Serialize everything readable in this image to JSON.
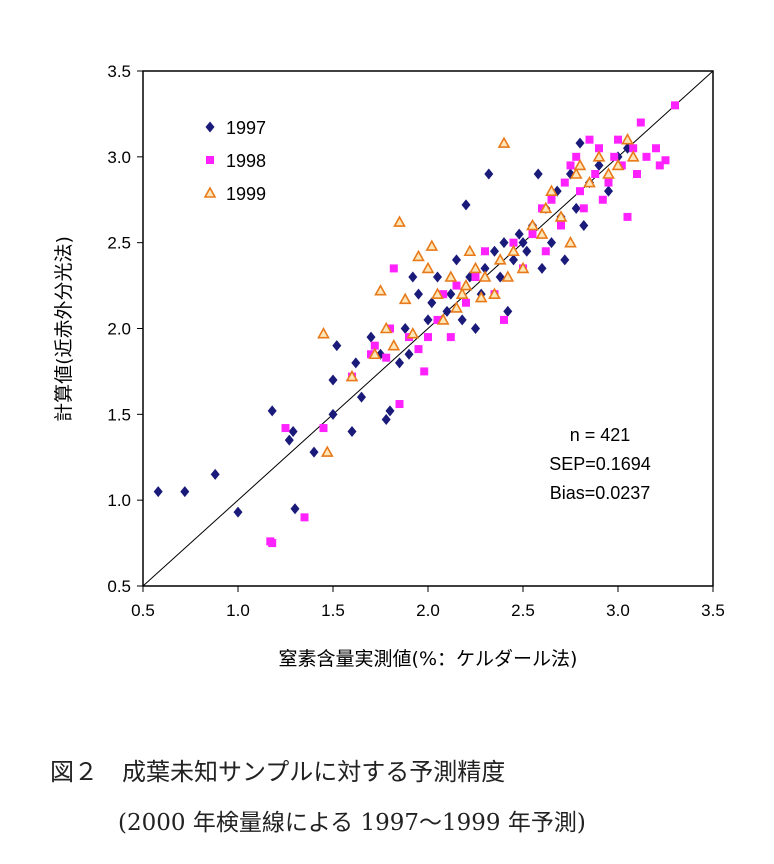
{
  "chart_data": {
    "type": "scatter",
    "xlabel": "窒素含量実測値(%：ケルダール法)",
    "ylabel": "計算値(近赤外分光法)",
    "xlim": [
      0.5,
      3.5
    ],
    "ylim": [
      0.5,
      3.5
    ],
    "x_ticks": [
      "0.5",
      "1.0",
      "1.5",
      "2.0",
      "2.5",
      "3.0",
      "3.5"
    ],
    "y_ticks": [
      "0.5",
      "1.0",
      "1.5",
      "2.0",
      "2.5",
      "3.0",
      "3.5"
    ],
    "grid": false,
    "legend_position": "top-left",
    "reference_line": "y = x",
    "stats": [
      "n = 421",
      "SEP=0.1694",
      "Bias=0.0237"
    ],
    "series": [
      {
        "name": "1997",
        "marker": "diamond",
        "color": "#1a1a7a",
        "points": [
          [
            0.58,
            1.05
          ],
          [
            0.72,
            1.05
          ],
          [
            0.88,
            1.15
          ],
          [
            1.0,
            0.93
          ],
          [
            1.18,
            1.52
          ],
          [
            1.27,
            1.35
          ],
          [
            1.29,
            1.4
          ],
          [
            1.3,
            0.95
          ],
          [
            1.4,
            1.28
          ],
          [
            1.5,
            1.5
          ],
          [
            1.5,
            1.7
          ],
          [
            1.52,
            1.9
          ],
          [
            1.6,
            1.4
          ],
          [
            1.62,
            1.8
          ],
          [
            1.65,
            1.6
          ],
          [
            1.7,
            1.95
          ],
          [
            1.75,
            1.85
          ],
          [
            1.78,
            1.47
          ],
          [
            1.8,
            1.52
          ],
          [
            1.85,
            1.8
          ],
          [
            1.88,
            2.0
          ],
          [
            1.9,
            1.85
          ],
          [
            1.92,
            2.3
          ],
          [
            1.95,
            2.2
          ],
          [
            2.0,
            2.05
          ],
          [
            2.02,
            2.15
          ],
          [
            2.05,
            2.3
          ],
          [
            2.1,
            2.1
          ],
          [
            2.12,
            2.2
          ],
          [
            2.15,
            2.4
          ],
          [
            2.18,
            2.05
          ],
          [
            2.2,
            2.72
          ],
          [
            2.22,
            2.3
          ],
          [
            2.25,
            2.0
          ],
          [
            2.28,
            2.2
          ],
          [
            2.3,
            2.35
          ],
          [
            2.32,
            2.9
          ],
          [
            2.35,
            2.45
          ],
          [
            2.38,
            2.3
          ],
          [
            2.4,
            2.5
          ],
          [
            2.42,
            2.1
          ],
          [
            2.45,
            2.4
          ],
          [
            2.48,
            2.55
          ],
          [
            2.5,
            2.5
          ],
          [
            2.52,
            2.45
          ],
          [
            2.55,
            2.6
          ],
          [
            2.58,
            2.9
          ],
          [
            2.6,
            2.35
          ],
          [
            2.62,
            2.7
          ],
          [
            2.65,
            2.5
          ],
          [
            2.68,
            2.8
          ],
          [
            2.7,
            2.65
          ],
          [
            2.72,
            2.4
          ],
          [
            2.75,
            2.9
          ],
          [
            2.78,
            2.7
          ],
          [
            2.8,
            3.08
          ],
          [
            2.82,
            2.6
          ],
          [
            2.85,
            2.85
          ],
          [
            2.9,
            2.95
          ],
          [
            2.95,
            2.8
          ],
          [
            3.0,
            3.0
          ],
          [
            3.05,
            3.05
          ]
        ]
      },
      {
        "name": "1998",
        "marker": "square",
        "color": "#ff22ff",
        "points": [
          [
            1.17,
            0.76
          ],
          [
            1.18,
            0.75
          ],
          [
            1.25,
            1.42
          ],
          [
            1.35,
            0.9
          ],
          [
            1.45,
            1.42
          ],
          [
            1.6,
            1.72
          ],
          [
            1.7,
            1.85
          ],
          [
            1.72,
            1.9
          ],
          [
            1.78,
            1.83
          ],
          [
            1.8,
            2.0
          ],
          [
            1.82,
            2.35
          ],
          [
            1.85,
            1.56
          ],
          [
            1.9,
            1.95
          ],
          [
            1.95,
            1.88
          ],
          [
            1.98,
            1.75
          ],
          [
            2.0,
            1.95
          ],
          [
            2.05,
            2.05
          ],
          [
            2.08,
            2.2
          ],
          [
            2.12,
            1.95
          ],
          [
            2.15,
            2.25
          ],
          [
            2.2,
            2.15
          ],
          [
            2.25,
            2.3
          ],
          [
            2.3,
            2.45
          ],
          [
            2.35,
            2.2
          ],
          [
            2.4,
            2.05
          ],
          [
            2.45,
            2.5
          ],
          [
            2.5,
            2.35
          ],
          [
            2.55,
            2.55
          ],
          [
            2.6,
            2.7
          ],
          [
            2.62,
            2.45
          ],
          [
            2.65,
            2.75
          ],
          [
            2.7,
            2.6
          ],
          [
            2.72,
            2.85
          ],
          [
            2.75,
            2.95
          ],
          [
            2.78,
            3.0
          ],
          [
            2.8,
            2.8
          ],
          [
            2.82,
            2.7
          ],
          [
            2.85,
            3.1
          ],
          [
            2.88,
            2.9
          ],
          [
            2.9,
            3.05
          ],
          [
            2.92,
            2.75
          ],
          [
            2.95,
            2.85
          ],
          [
            2.98,
            3.0
          ],
          [
            3.0,
            3.1
          ],
          [
            3.02,
            2.95
          ],
          [
            3.05,
            2.65
          ],
          [
            3.08,
            3.05
          ],
          [
            3.1,
            2.9
          ],
          [
            3.12,
            3.2
          ],
          [
            3.15,
            3.0
          ],
          [
            3.2,
            3.05
          ],
          [
            3.22,
            2.95
          ],
          [
            3.25,
            2.98
          ],
          [
            3.3,
            3.3
          ]
        ]
      },
      {
        "name": "1999",
        "marker": "triangle",
        "color": "#e87a1a",
        "points": [
          [
            1.45,
            1.97
          ],
          [
            1.47,
            1.28
          ],
          [
            1.6,
            1.72
          ],
          [
            1.72,
            1.85
          ],
          [
            1.75,
            2.22
          ],
          [
            1.78,
            2.0
          ],
          [
            1.82,
            1.9
          ],
          [
            1.85,
            2.62
          ],
          [
            1.88,
            2.17
          ],
          [
            1.92,
            1.97
          ],
          [
            1.95,
            2.42
          ],
          [
            2.0,
            2.35
          ],
          [
            2.02,
            2.48
          ],
          [
            2.05,
            2.2
          ],
          [
            2.08,
            2.05
          ],
          [
            2.12,
            2.3
          ],
          [
            2.15,
            2.12
          ],
          [
            2.18,
            2.2
          ],
          [
            2.2,
            2.25
          ],
          [
            2.22,
            2.45
          ],
          [
            2.25,
            2.35
          ],
          [
            2.28,
            2.18
          ],
          [
            2.3,
            2.3
          ],
          [
            2.35,
            2.2
          ],
          [
            2.38,
            2.4
          ],
          [
            2.4,
            3.08
          ],
          [
            2.42,
            2.3
          ],
          [
            2.45,
            2.45
          ],
          [
            2.5,
            2.35
          ],
          [
            2.55,
            2.6
          ],
          [
            2.6,
            2.55
          ],
          [
            2.62,
            2.7
          ],
          [
            2.65,
            2.8
          ],
          [
            2.7,
            2.65
          ],
          [
            2.75,
            2.5
          ],
          [
            2.78,
            2.9
          ],
          [
            2.8,
            2.95
          ],
          [
            2.85,
            2.85
          ],
          [
            2.9,
            3.0
          ],
          [
            2.95,
            2.9
          ],
          [
            3.0,
            2.95
          ],
          [
            3.05,
            3.1
          ],
          [
            3.08,
            3.0
          ]
        ]
      }
    ]
  },
  "caption": {
    "line1": "図２　成葉未知サンプルに対する予測精度",
    "line2": "(2000 年検量線による 1997〜1999 年予測)"
  }
}
